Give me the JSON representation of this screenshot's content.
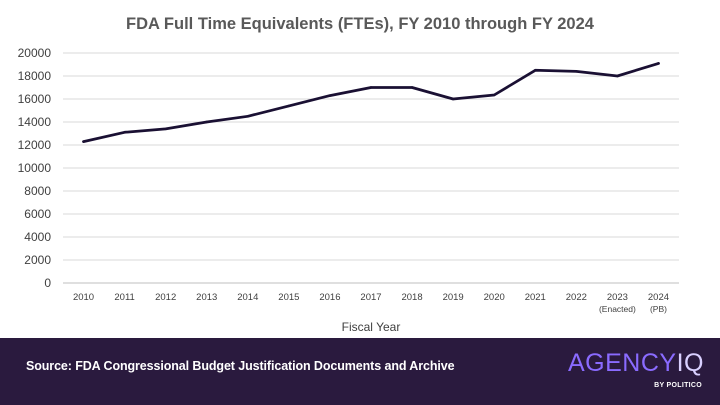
{
  "chart_data": {
    "type": "line",
    "title": "FDA Full Time Equivalents (FTEs), FY 2010 through FY 2024",
    "xlabel": "Fiscal Year",
    "ylabel": "",
    "ylim": [
      0,
      20000
    ],
    "yticks": [
      0,
      2000,
      4000,
      6000,
      8000,
      10000,
      12000,
      14000,
      16000,
      18000,
      20000
    ],
    "grid": true,
    "categories": [
      [
        "2010"
      ],
      [
        "2011"
      ],
      [
        "2012"
      ],
      [
        "2013"
      ],
      [
        "2014"
      ],
      [
        "2015"
      ],
      [
        "2016"
      ],
      [
        "2017"
      ],
      [
        "2018"
      ],
      [
        "2019"
      ],
      [
        "2020"
      ],
      [
        "2021"
      ],
      [
        "2022"
      ],
      [
        "2023",
        "(Enacted)"
      ],
      [
        "2024",
        "(PB)"
      ]
    ],
    "series": [
      {
        "values": [
          12300,
          13100,
          13400,
          14000,
          14500,
          15400,
          16300,
          17000,
          17000,
          16000,
          16350,
          18500,
          18400,
          18000,
          19100
        ],
        "color": "#1a1033"
      }
    ]
  },
  "footer": {
    "source": "Source: FDA Congressional Budget Justification Documents and Archive",
    "logo_agency": "AGENCY",
    "logo_iq": "IQ",
    "logo_sub": "BY POLITICO"
  },
  "colors": {
    "footer_bg": "#2a1a3e",
    "grid": "#d9d9d9",
    "logo_agency": "#8a6bff"
  }
}
